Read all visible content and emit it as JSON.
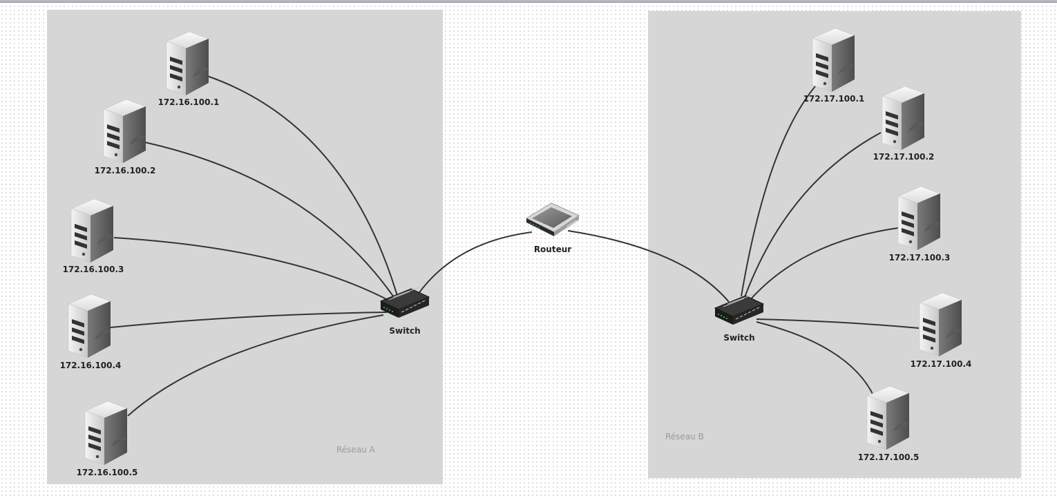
{
  "zones": {
    "a": {
      "label": "Réseau A"
    },
    "b": {
      "label": "Réseau B"
    }
  },
  "router": {
    "label": "Routeur"
  },
  "switch_a": {
    "label": "Switch"
  },
  "switch_b": {
    "label": "Switch"
  },
  "servers_a": [
    {
      "label": "172.16.100.1"
    },
    {
      "label": "172.16.100.2"
    },
    {
      "label": "172.16.100.3"
    },
    {
      "label": "172.16.100.4"
    },
    {
      "label": "172.16.100.5"
    }
  ],
  "servers_b": [
    {
      "label": "172.17.100.1"
    },
    {
      "label": "172.17.100.2"
    },
    {
      "label": "172.17.100.3"
    },
    {
      "label": "172.17.100.4"
    },
    {
      "label": "172.17.100.5"
    }
  ],
  "icons": {
    "server": "server-icon",
    "switch": "network-switch-icon",
    "router": "router-icon"
  },
  "colors": {
    "zone": "#d6d6d6",
    "link": "#333333",
    "label": "#222222"
  }
}
